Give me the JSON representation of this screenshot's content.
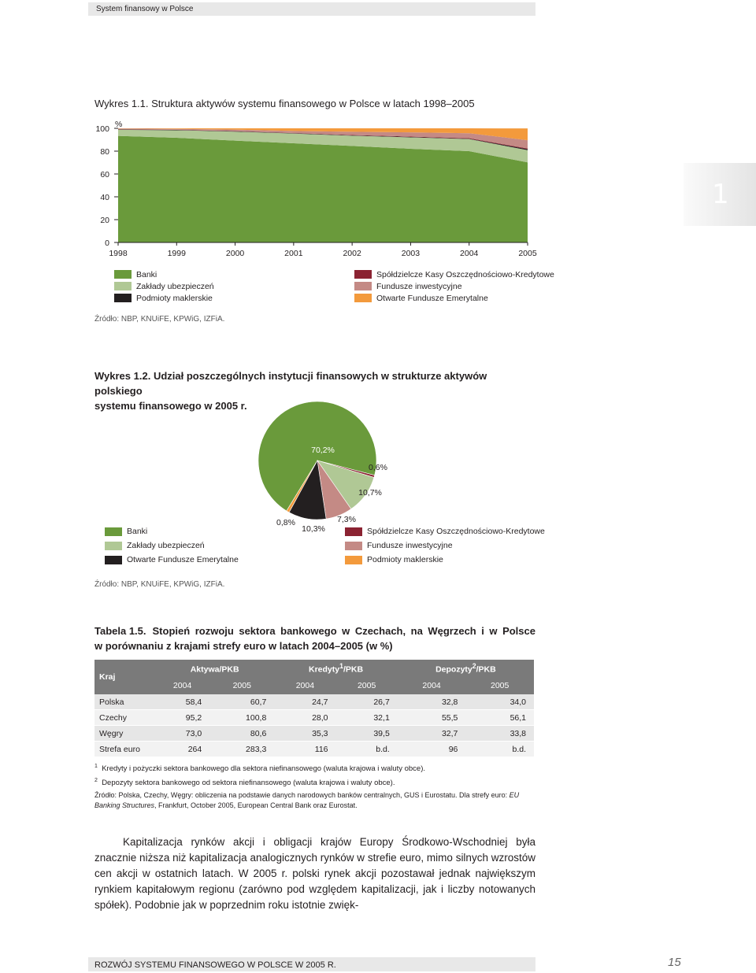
{
  "header": {
    "running_title": "System finansowy w Polsce"
  },
  "side_tab": {
    "number": "1"
  },
  "figure1": {
    "label": "Wykres 1.1.",
    "title": "Struktura aktywów systemu finansowego w Polsce w latach 1998–2005",
    "y_unit": "%",
    "source": "Źródło: NBP, KNUiFE, KPWiG, IZFiA.",
    "legend_left": [
      "Banki",
      "Zakłady ubezpieczeń",
      "Podmioty maklerskie"
    ],
    "legend_right": [
      "Spółdzielcze Kasy Oszczędnościowo-Kredytowe",
      "Fundusze inwestycyjne",
      "Otwarte Fundusze Emerytalne"
    ]
  },
  "chart_data": [
    {
      "type": "area",
      "stacked": true,
      "x": [
        "1998",
        "1999",
        "2000",
        "2001",
        "2002",
        "2003",
        "2004",
        "2005"
      ],
      "ylim": [
        0,
        100
      ],
      "yticks": [
        0,
        20,
        40,
        60,
        80,
        100
      ],
      "series": [
        {
          "name": "Banki",
          "color": "#6a9a3b",
          "values": [
            93.4,
            91.7,
            89.2,
            86.9,
            84.6,
            82.1,
            80.0,
            70.2
          ]
        },
        {
          "name": "Zakłady ubezpieczeń",
          "color": "#b0c895",
          "values": [
            5.3,
            6.6,
            7.9,
            8.5,
            8.9,
            10.0,
            10.6,
            10.7
          ]
        },
        {
          "name": "Podmioty maklerskie",
          "color": "#231f20",
          "values": [
            0.3,
            0.3,
            0.3,
            0.3,
            0.3,
            0.3,
            0.3,
            0.8
          ]
        },
        {
          "name": "Spółdzielcze Kasy Oszczędnościowo-Kredytowe",
          "color": "#8b2332",
          "values": [
            0.1,
            0.1,
            0.2,
            0.2,
            0.3,
            0.4,
            0.5,
            0.6
          ]
        },
        {
          "name": "Fundusze inwestycyjne",
          "color": "#c48a85",
          "values": [
            0.7,
            0.8,
            1.3,
            1.8,
            2.9,
            3.7,
            4.3,
            7.3
          ]
        },
        {
          "name": "Otwarte Fundusze Emerytalne",
          "color": "#f39a3c",
          "values": [
            0.2,
            0.5,
            1.1,
            2.3,
            3.0,
            3.5,
            4.3,
            10.3
          ]
        }
      ],
      "legend_position": "bottom"
    },
    {
      "type": "pie",
      "slices": [
        {
          "name": "Banki",
          "value": 70.2,
          "label": "70,2%",
          "color": "#6a9a3b"
        },
        {
          "name": "Spółdzielcze Kasy Oszczędnościowo-Kredytowe",
          "value": 0.6,
          "label": "0,6%",
          "color": "#8b2332"
        },
        {
          "name": "Zakłady ubezpieczeń",
          "value": 10.7,
          "label": "10,7%",
          "color": "#b0c895"
        },
        {
          "name": "Fundusze inwestycyjne",
          "value": 7.3,
          "label": "7,3%",
          "color": "#c48a85"
        },
        {
          "name": "Otwarte Fundusze Emerytalne",
          "value": 10.3,
          "label": "10,3%",
          "color": "#231f20"
        },
        {
          "name": "Podmioty maklerskie",
          "value": 0.8,
          "label": "0,8%",
          "color": "#f39a3c"
        }
      ]
    }
  ],
  "figure2": {
    "label": "Wykres 1.2.",
    "title_line1": "Udział poszczególnych instytucji finansowych w strukturze aktywów polskiego",
    "title_line2": "systemu finansowego w 2005 r.",
    "legend_left": [
      "Banki",
      "Zakłady ubezpieczeń",
      "Otwarte Fundusze Emerytalne"
    ],
    "legend_right": [
      "Spółdzielcze Kasy Oszczędnościowo-Kredytowe",
      "Fundusze inwestycyjne",
      "Podmioty maklerskie"
    ],
    "source": "Źródło: NBP, KNUiFE, KPWiG, IZFiA."
  },
  "table": {
    "label": "Tabela 1.5.",
    "title_line1": "Stopień rozwoju sektora bankowego w Czechach, na Węgrzech i w Polsce",
    "title_line2": "w porównaniu z krajami strefy euro w latach 2004–2005 (w %)",
    "col_country": "Kraj",
    "groups": [
      "Aktywa/PKB",
      "Kredyty",
      "Depozyty"
    ],
    "group_suffix": "/PKB",
    "group_sups": [
      "",
      "1",
      "2"
    ],
    "years": [
      "2004",
      "2005",
      "2004",
      "2005",
      "2004",
      "2005"
    ],
    "rows": [
      {
        "country": "Polska",
        "values": [
          "58,4",
          "60,7",
          "24,7",
          "26,7",
          "32,8",
          "34,0"
        ]
      },
      {
        "country": "Czechy",
        "values": [
          "95,2",
          "100,8",
          "28,0",
          "32,1",
          "55,5",
          "56,1"
        ]
      },
      {
        "country": "Węgry",
        "values": [
          "73,0",
          "80,6",
          "35,3",
          "39,5",
          "32,7",
          "33,8"
        ]
      },
      {
        "country": "Strefa euro",
        "values": [
          "264",
          "283,3",
          "116",
          "b.d.",
          "96",
          "b.d."
        ]
      }
    ],
    "note1": "Kredyty i pożyczki sektora bankowego dla sektora niefinansowego (waluta krajowa i waluty obce).",
    "note2": "Depozyty sektora bankowego od sektora niefinansowego (waluta krajowa i waluty obce).",
    "source_prefix": "Źródło: Polska, Czechy, Węgry: obliczenia na podstawie danych narodowych banków centralnych, GUS i Eurostatu. Dla strefy euro: ",
    "source_italic": "EU Banking Structures",
    "source_suffix": ", Frankfurt, October 2005, European Central Bank oraz Eurostat."
  },
  "body_text": "Kapitalizacja rynków akcji i obligacji krajów Europy Środkowo-Wschodniej była znacznie niższa niż kapitalizacja analogicznych rynków w strefie euro, mimo silnych wzrostów cen akcji w ostatnich latach. W 2005 r. polski rynek akcji pozostawał jednak największym rynkiem kapitałowym regionu (zarówno pod względem kapitalizacji, jak i liczby notowanych spółek). Podobnie jak w poprzednim roku istotnie zwięk-",
  "footer": {
    "running_title": "ROZWÓJ SYSTEMU FINANSOWEGO W POLSCE W 2005 R.",
    "page_number": "15"
  }
}
